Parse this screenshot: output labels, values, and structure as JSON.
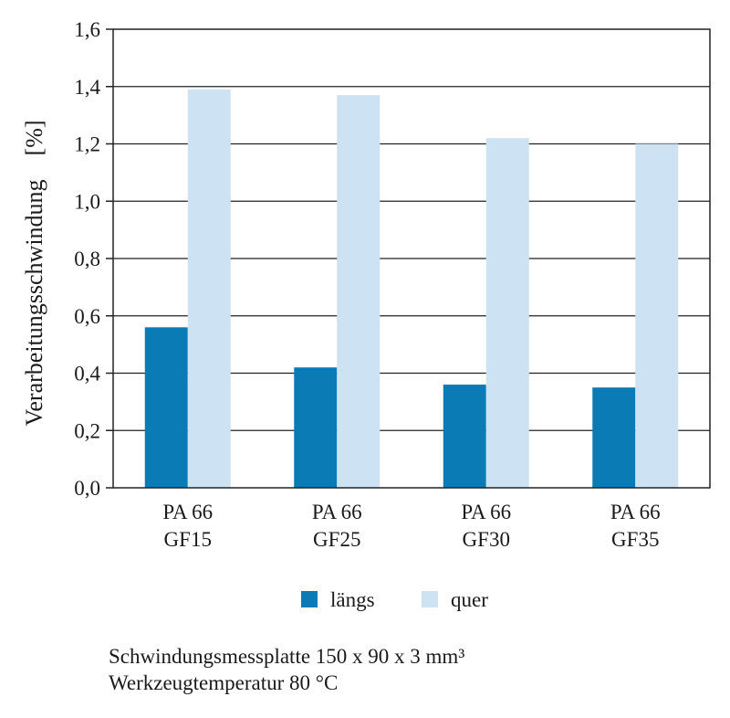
{
  "chart_data": {
    "type": "bar",
    "categories": [
      [
        "PA 66",
        "GF15"
      ],
      [
        "PA 66",
        "GF25"
      ],
      [
        "PA 66",
        "GF30"
      ],
      [
        "PA 66",
        "GF35"
      ]
    ],
    "series": [
      {
        "name": "längs",
        "values": [
          0.56,
          0.42,
          0.36,
          0.35
        ]
      },
      {
        "name": "quer",
        "values": [
          1.39,
          1.37,
          1.22,
          1.2
        ]
      }
    ],
    "ylabel": "Verarbeitungsschwindung    [%]",
    "ylim": [
      0,
      1.6
    ],
    "yticks": [
      "0,0",
      "0,2",
      "0,4",
      "0,6",
      "0,8",
      "1,0",
      "1,2",
      "1,4",
      "1,6"
    ],
    "grid": true,
    "legend_position": "bottom"
  },
  "colors": {
    "laengs": "#0b7bb5",
    "quer": "#cde2f2",
    "grid": "#222222"
  },
  "footnotes": {
    "line1": "Schwindungsmessplatte 150 x 90 x 3 mm³",
    "line2": "Werkzeugtemperatur 80 °C"
  }
}
